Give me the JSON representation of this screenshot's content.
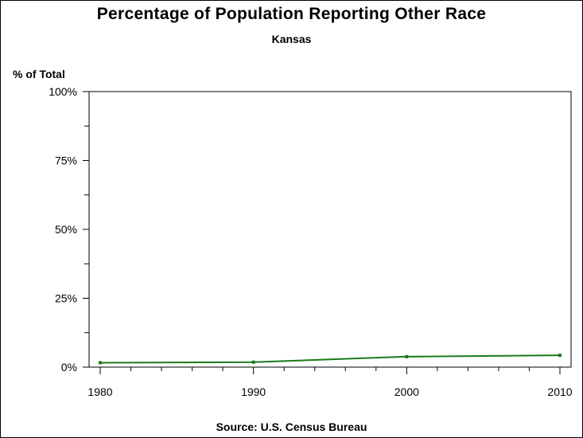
{
  "chart_data": {
    "type": "line",
    "title": "Percentage of Population Reporting Other Race",
    "subtitle": "Kansas",
    "ylabel": "% of Total",
    "source": "Source: U.S. Census Bureau",
    "x": [
      1980,
      1990,
      2000,
      2010
    ],
    "series": [
      {
        "values": [
          1.6,
          1.8,
          3.8,
          4.3
        ],
        "color": "#1a7a1a"
      }
    ],
    "xlim": [
      1980,
      2010
    ],
    "ylim": [
      0,
      100
    ],
    "xticks": [
      {
        "value": 1980,
        "label": "1980"
      },
      {
        "value": 1990,
        "label": "1990"
      },
      {
        "value": 2000,
        "label": "2000"
      },
      {
        "value": 2010,
        "label": "2010"
      }
    ],
    "yticks": [
      {
        "value": 0,
        "label": "0%"
      },
      {
        "value": 25,
        "label": "25%"
      },
      {
        "value": 50,
        "label": "50%"
      },
      {
        "value": 75,
        "label": "75%"
      },
      {
        "value": 100,
        "label": "100%"
      }
    ],
    "grid": false
  }
}
